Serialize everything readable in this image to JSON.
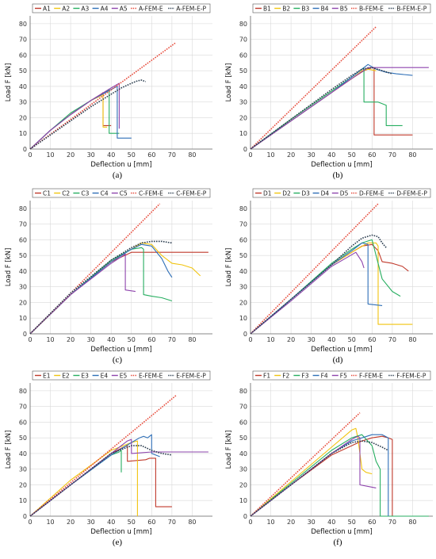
{
  "figure": {
    "colors": {
      "s1": "#c0392b",
      "s2": "#f1c40f",
      "s3": "#27ae60",
      "s4": "#2e6fb7",
      "s5": "#8e44ad",
      "fem_e": "#e74c3c",
      "fem_e_p": "#2c3e50"
    }
  },
  "chart_data": [
    {
      "type": "line",
      "caption": "(a)",
      "xlabel": "Deflection u [mm]",
      "ylabel": "Load F [kN]",
      "xlim": [
        0,
        90
      ],
      "ylim": [
        0,
        85
      ],
      "xticks": [
        0,
        10,
        20,
        30,
        40,
        50,
        60,
        70,
        80
      ],
      "yticks": [
        0,
        10,
        20,
        30,
        40,
        50,
        60,
        70,
        80
      ],
      "legend": "top",
      "series": [
        {
          "name": "A1",
          "color": "s1",
          "x": [
            0,
            10,
            20,
            30,
            35,
            36,
            36,
            40
          ],
          "y": [
            0,
            12,
            22,
            31,
            35,
            36,
            15,
            15
          ]
        },
        {
          "name": "A2",
          "color": "s2",
          "x": [
            0,
            10,
            20,
            30,
            35,
            36,
            36,
            38
          ],
          "y": [
            0,
            12,
            22,
            31,
            34,
            35,
            14,
            14
          ]
        },
        {
          "name": "A3",
          "color": "s3",
          "x": [
            0,
            10,
            20,
            30,
            38,
            39,
            39,
            44
          ],
          "y": [
            0,
            12,
            23,
            31,
            37,
            38,
            10,
            10
          ]
        },
        {
          "name": "A4",
          "color": "s4",
          "x": [
            0,
            10,
            20,
            30,
            40,
            43,
            43,
            50
          ],
          "y": [
            0,
            12,
            22,
            31,
            38,
            40,
            7,
            7
          ]
        },
        {
          "name": "A5",
          "color": "s5",
          "x": [
            0,
            10,
            20,
            30,
            40,
            44,
            44
          ],
          "y": [
            0,
            12,
            22,
            31,
            39,
            42,
            13
          ]
        },
        {
          "name": "A-FEM-E",
          "color": "fem_e",
          "style": "dotted",
          "x": [
            0,
            72
          ],
          "y": [
            0,
            68
          ]
        },
        {
          "name": "A-FEM-E-P",
          "color": "fem_e_p",
          "style": "dotted",
          "x": [
            0,
            10,
            20,
            30,
            40,
            45,
            50,
            53,
            55,
            57
          ],
          "y": [
            0,
            9,
            18,
            27,
            35,
            39,
            42,
            43.5,
            44,
            43
          ]
        }
      ]
    },
    {
      "type": "line",
      "caption": "(b)",
      "xlabel": "Deflection u [mm]",
      "ylabel": "Load F [kN]",
      "xlim": [
        0,
        90
      ],
      "ylim": [
        0,
        85
      ],
      "xticks": [
        0,
        10,
        20,
        30,
        40,
        50,
        60,
        70,
        80
      ],
      "yticks": [
        0,
        10,
        20,
        30,
        40,
        50,
        60,
        70,
        80
      ],
      "legend": "top",
      "series": [
        {
          "name": "B1",
          "color": "s1",
          "x": [
            0,
            20,
            40,
            50,
            56,
            60,
            61,
            61,
            70,
            80
          ],
          "y": [
            0,
            18,
            36,
            45,
            50,
            52,
            52,
            9,
            9,
            9
          ]
        },
        {
          "name": "B2",
          "color": "s2",
          "x": [
            0,
            20,
            40,
            50,
            55,
            58,
            62
          ],
          "y": [
            0,
            18,
            36,
            45,
            50,
            51,
            50
          ]
        },
        {
          "name": "B3",
          "color": "s3",
          "x": [
            0,
            20,
            40,
            50,
            55,
            56,
            56,
            63,
            67,
            67,
            75
          ],
          "y": [
            0,
            19,
            37,
            46,
            51,
            52,
            30,
            30,
            28,
            15,
            15
          ]
        },
        {
          "name": "B4",
          "color": "s4",
          "x": [
            0,
            20,
            40,
            50,
            55,
            58,
            62,
            67,
            72,
            80
          ],
          "y": [
            0,
            18,
            36,
            46,
            51,
            54,
            51,
            49,
            48,
            47
          ]
        },
        {
          "name": "B5",
          "color": "s5",
          "x": [
            0,
            20,
            40,
            50,
            58,
            60,
            88
          ],
          "y": [
            0,
            18,
            36,
            45,
            52,
            52,
            52
          ]
        },
        {
          "name": "B-FEM-E",
          "color": "fem_e",
          "style": "dotted",
          "x": [
            0,
            62
          ],
          "y": [
            0,
            78
          ]
        },
        {
          "name": "B-FEM-E-P",
          "color": "fem_e_p",
          "style": "dotted",
          "x": [
            0,
            20,
            40,
            50,
            55,
            60,
            65,
            70
          ],
          "y": [
            0,
            19,
            38,
            47,
            51,
            52,
            50,
            48
          ]
        }
      ]
    },
    {
      "type": "line",
      "caption": "(c)",
      "xlabel": "Deflection u [mm]",
      "ylabel": "Load F [kN]",
      "xlim": [
        0,
        90
      ],
      "ylim": [
        0,
        85
      ],
      "xticks": [
        0,
        10,
        20,
        30,
        40,
        50,
        60,
        70,
        80
      ],
      "yticks": [
        0,
        10,
        20,
        30,
        40,
        50,
        60,
        70,
        80
      ],
      "legend": "top",
      "series": [
        {
          "name": "C1",
          "color": "s1",
          "x": [
            0,
            20,
            40,
            50,
            52,
            60,
            88
          ],
          "y": [
            0,
            25,
            46,
            52,
            52,
            52,
            52
          ]
        },
        {
          "name": "C2",
          "color": "s2",
          "x": [
            0,
            20,
            40,
            50,
            55,
            60,
            65,
            70,
            75,
            80,
            84
          ],
          "y": [
            0,
            25,
            46,
            54,
            58,
            57,
            50,
            45,
            44,
            42,
            37
          ]
        },
        {
          "name": "C3",
          "color": "s3",
          "x": [
            0,
            20,
            40,
            50,
            55,
            56,
            56,
            60,
            65,
            70
          ],
          "y": [
            0,
            25,
            47,
            54,
            55,
            54,
            25,
            24,
            23,
            21
          ]
        },
        {
          "name": "C4",
          "color": "s4",
          "x": [
            0,
            20,
            40,
            50,
            55,
            60,
            65,
            68,
            70
          ],
          "y": [
            0,
            25,
            46,
            54,
            57,
            56,
            48,
            40,
            36
          ]
        },
        {
          "name": "C5",
          "color": "s5",
          "x": [
            0,
            20,
            40,
            46,
            47,
            47,
            52
          ],
          "y": [
            0,
            25,
            45,
            50,
            51,
            28,
            27
          ]
        },
        {
          "name": "C-FEM-E",
          "color": "fem_e",
          "style": "dotted",
          "x": [
            0,
            64
          ],
          "y": [
            0,
            83
          ]
        },
        {
          "name": "C-FEM-E-P",
          "color": "fem_e_p",
          "style": "dotted",
          "x": [
            0,
            20,
            40,
            50,
            55,
            60,
            65,
            70
          ],
          "y": [
            0,
            26,
            47,
            55,
            58,
            59,
            59,
            58
          ]
        }
      ]
    },
    {
      "type": "line",
      "caption": "(d)",
      "xlabel": "Deflection u [mm]",
      "ylabel": "Load F [kN]",
      "xlim": [
        0,
        90
      ],
      "ylim": [
        0,
        85
      ],
      "xticks": [
        0,
        10,
        20,
        30,
        40,
        50,
        60,
        70,
        80
      ],
      "yticks": [
        0,
        10,
        20,
        30,
        40,
        50,
        60,
        70,
        80
      ],
      "legend": "top",
      "series": [
        {
          "name": "D1",
          "color": "s1",
          "x": [
            0,
            20,
            40,
            50,
            55,
            60,
            63,
            65,
            70,
            75,
            78
          ],
          "y": [
            0,
            22,
            44,
            52,
            56,
            57,
            53,
            46,
            45,
            43,
            40
          ]
        },
        {
          "name": "D2",
          "color": "s2",
          "x": [
            0,
            20,
            40,
            50,
            58,
            62,
            63,
            63,
            80
          ],
          "y": [
            0,
            22,
            44,
            52,
            58,
            58,
            56,
            6,
            6
          ]
        },
        {
          "name": "D3",
          "color": "s3",
          "x": [
            0,
            20,
            40,
            50,
            55,
            60,
            62,
            65,
            70,
            74
          ],
          "y": [
            0,
            22,
            45,
            54,
            58,
            60,
            50,
            35,
            27,
            24
          ]
        },
        {
          "name": "D4",
          "color": "s4",
          "x": [
            0,
            20,
            40,
            50,
            55,
            58,
            58,
            65
          ],
          "y": [
            0,
            22,
            44,
            53,
            58,
            57,
            19,
            18
          ]
        },
        {
          "name": "D5",
          "color": "s5",
          "x": [
            0,
            20,
            40,
            48,
            52,
            55,
            56
          ],
          "y": [
            0,
            21,
            43,
            49,
            52,
            46,
            42
          ]
        },
        {
          "name": "D-FEM-E",
          "color": "fem_e",
          "style": "dotted",
          "x": [
            0,
            63
          ],
          "y": [
            0,
            83
          ]
        },
        {
          "name": "D-FEM-E-P",
          "color": "fem_e_p",
          "style": "dotted",
          "x": [
            0,
            20,
            40,
            50,
            55,
            60,
            63,
            65,
            67
          ],
          "y": [
            0,
            22,
            44,
            56,
            61,
            63,
            62,
            58,
            55
          ]
        }
      ]
    },
    {
      "type": "line",
      "caption": "(e)",
      "xlabel": "Deflection u [mm]",
      "ylabel": "Load F [kN]",
      "xlim": [
        0,
        90
      ],
      "ylim": [
        0,
        85
      ],
      "xticks": [
        0,
        10,
        20,
        30,
        40,
        50,
        60,
        70,
        80
      ],
      "yticks": [
        0,
        10,
        20,
        30,
        40,
        50,
        60,
        70,
        80
      ],
      "legend": "top",
      "series": [
        {
          "name": "E1",
          "color": "s1",
          "x": [
            0,
            20,
            40,
            46,
            48,
            48,
            57,
            59,
            62,
            62,
            70
          ],
          "y": [
            0,
            20,
            40,
            44,
            45,
            35,
            36,
            37,
            37,
            6,
            6
          ]
        },
        {
          "name": "E2",
          "color": "s2",
          "x": [
            0,
            20,
            40,
            50,
            53,
            53
          ],
          "y": [
            0,
            23,
            42,
            47,
            48,
            0
          ]
        },
        {
          "name": "E3",
          "color": "s3",
          "x": [
            0,
            20,
            40,
            44,
            45,
            45
          ],
          "y": [
            0,
            20,
            39,
            41,
            42,
            28
          ]
        },
        {
          "name": "E4",
          "color": "s4",
          "x": [
            0,
            20,
            40,
            50,
            54,
            56,
            58,
            60,
            60,
            62,
            64
          ],
          "y": [
            0,
            20,
            39,
            47,
            50,
            51,
            50,
            52,
            40,
            39,
            38
          ]
        },
        {
          "name": "E5",
          "color": "s5",
          "x": [
            0,
            20,
            40,
            48,
            50,
            50,
            60,
            88
          ],
          "y": [
            0,
            20,
            40,
            48,
            49,
            40,
            41,
            41
          ]
        },
        {
          "name": "E-FEM-E",
          "color": "fem_e",
          "style": "dotted",
          "x": [
            0,
            72
          ],
          "y": [
            0,
            77
          ]
        },
        {
          "name": "E-FEM-E-P",
          "color": "fem_e_p",
          "style": "dotted",
          "x": [
            0,
            20,
            40,
            50,
            55,
            60,
            65,
            70
          ],
          "y": [
            0,
            20,
            40,
            45,
            45,
            42,
            40,
            39
          ]
        }
      ]
    },
    {
      "type": "line",
      "caption": "(f)",
      "xlabel": "Deflection u [mm]",
      "ylabel": "Load F [kN]",
      "xlim": [
        0,
        90
      ],
      "ylim": [
        0,
        85
      ],
      "xticks": [
        0,
        10,
        20,
        30,
        40,
        50,
        60,
        70,
        80
      ],
      "yticks": [
        0,
        10,
        20,
        30,
        40,
        50,
        60,
        70,
        80
      ],
      "legend": "top",
      "series": [
        {
          "name": "F1",
          "color": "s1",
          "x": [
            0,
            20,
            40,
            55,
            60,
            65,
            68,
            70,
            70,
            88
          ],
          "y": [
            0,
            20,
            39,
            48,
            50,
            51,
            50,
            49,
            0,
            0
          ]
        },
        {
          "name": "F2",
          "color": "s2",
          "x": [
            0,
            20,
            40,
            50,
            52,
            53,
            55,
            57,
            60
          ],
          "y": [
            0,
            22,
            44,
            55,
            56,
            50,
            30,
            28,
            27
          ]
        },
        {
          "name": "F3",
          "color": "s3",
          "x": [
            0,
            20,
            40,
            50,
            55,
            60,
            62,
            64,
            64,
            88
          ],
          "y": [
            0,
            21,
            42,
            50,
            52,
            45,
            35,
            30,
            0,
            0
          ]
        },
        {
          "name": "F4",
          "color": "s4",
          "x": [
            0,
            20,
            40,
            50,
            55,
            60,
            65,
            68,
            68
          ],
          "y": [
            0,
            20,
            40,
            48,
            50,
            52,
            52,
            50,
            0
          ]
        },
        {
          "name": "F5",
          "color": "s5",
          "x": [
            0,
            20,
            40,
            50,
            53,
            54,
            54,
            58,
            62
          ],
          "y": [
            0,
            20,
            40,
            49,
            51,
            50,
            20,
            19,
            18
          ]
        },
        {
          "name": "F-FEM-E",
          "color": "fem_e",
          "style": "dotted",
          "x": [
            0,
            54
          ],
          "y": [
            0,
            66
          ]
        },
        {
          "name": "F-FEM-E-P",
          "color": "fem_e_p",
          "style": "dotted",
          "x": [
            0,
            20,
            40,
            50,
            55,
            60,
            65,
            68
          ],
          "y": [
            0,
            20,
            40,
            47,
            48,
            47,
            44,
            42
          ]
        }
      ]
    }
  ]
}
